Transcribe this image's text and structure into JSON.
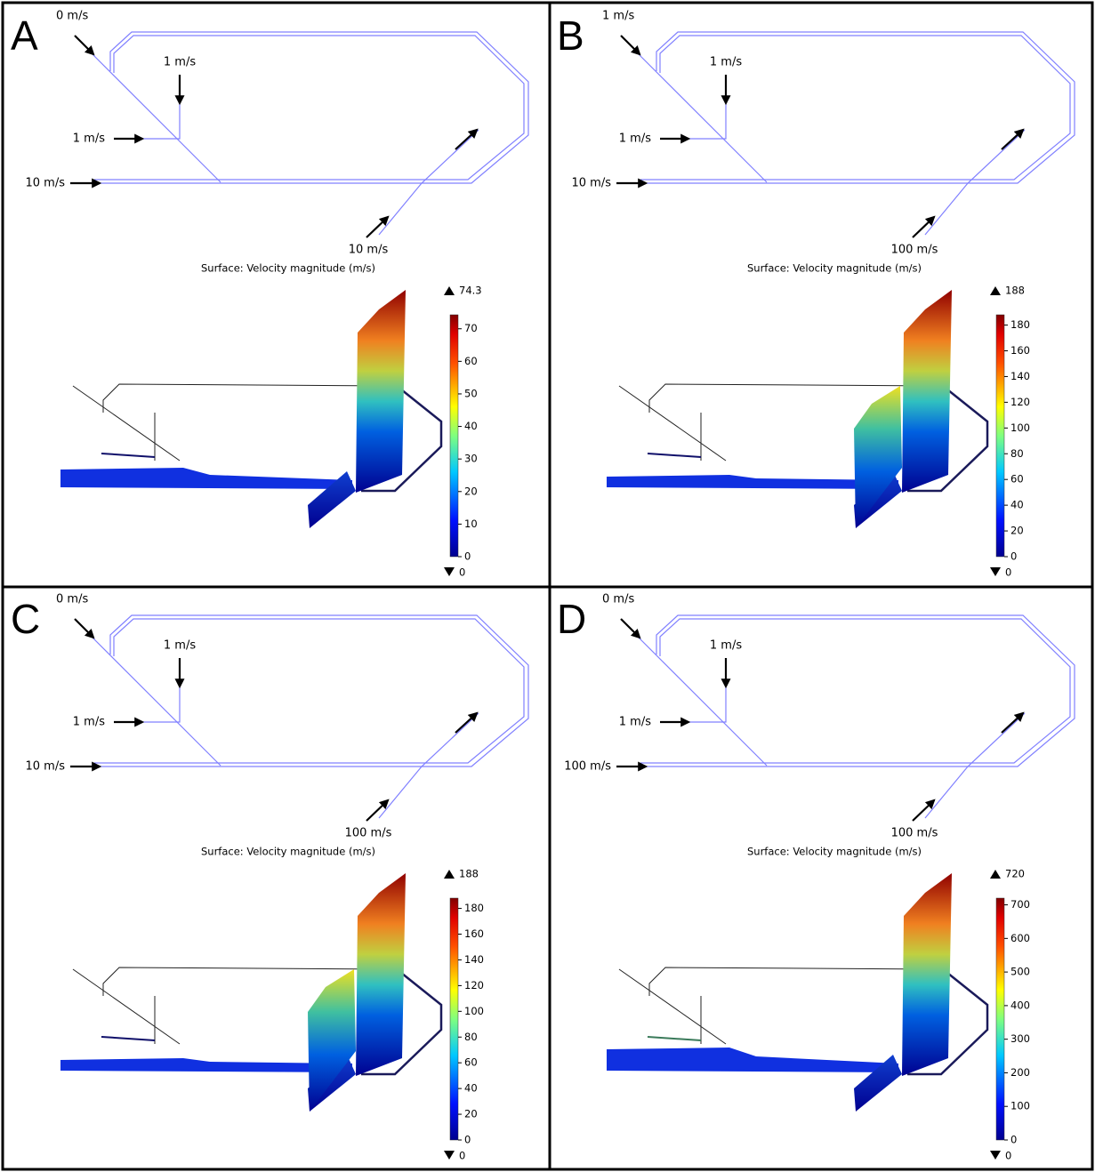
{
  "panels": [
    {
      "letter": "A",
      "inlets": [
        "0 m/s",
        "1 m/s",
        "1 m/s",
        "10 m/s",
        "10 m/s"
      ],
      "surface_title": "Surface: Velocity magnitude (m/s)",
      "colorbar": {
        "max": 74.3,
        "min": 0,
        "ticks": [
          70,
          60,
          50,
          40,
          30,
          20,
          10,
          0
        ]
      }
    },
    {
      "letter": "B",
      "inlets": [
        "1 m/s",
        "1 m/s",
        "1 m/s",
        "10 m/s",
        "100 m/s"
      ],
      "surface_title": "Surface: Velocity magnitude (m/s)",
      "colorbar": {
        "max": 188,
        "min": 0,
        "ticks": [
          180,
          160,
          140,
          120,
          100,
          80,
          60,
          40,
          20,
          0
        ]
      }
    },
    {
      "letter": "C",
      "inlets": [
        "0 m/s",
        "1 m/s",
        "1 m/s",
        "10 m/s",
        "100 m/s"
      ],
      "surface_title": "Surface: Velocity magnitude (m/s)",
      "colorbar": {
        "max": 188,
        "min": 0,
        "ticks": [
          180,
          160,
          140,
          120,
          100,
          80,
          60,
          40,
          20,
          0
        ]
      }
    },
    {
      "letter": "D",
      "inlets": [
        "0 m/s",
        "1 m/s",
        "1 m/s",
        "100 m/s",
        "100 m/s"
      ],
      "surface_title": "Surface: Velocity magnitude (m/s)",
      "colorbar": {
        "max": 720,
        "min": 0,
        "ticks": [
          700,
          600,
          500,
          400,
          300,
          200,
          100,
          0
        ]
      }
    }
  ]
}
